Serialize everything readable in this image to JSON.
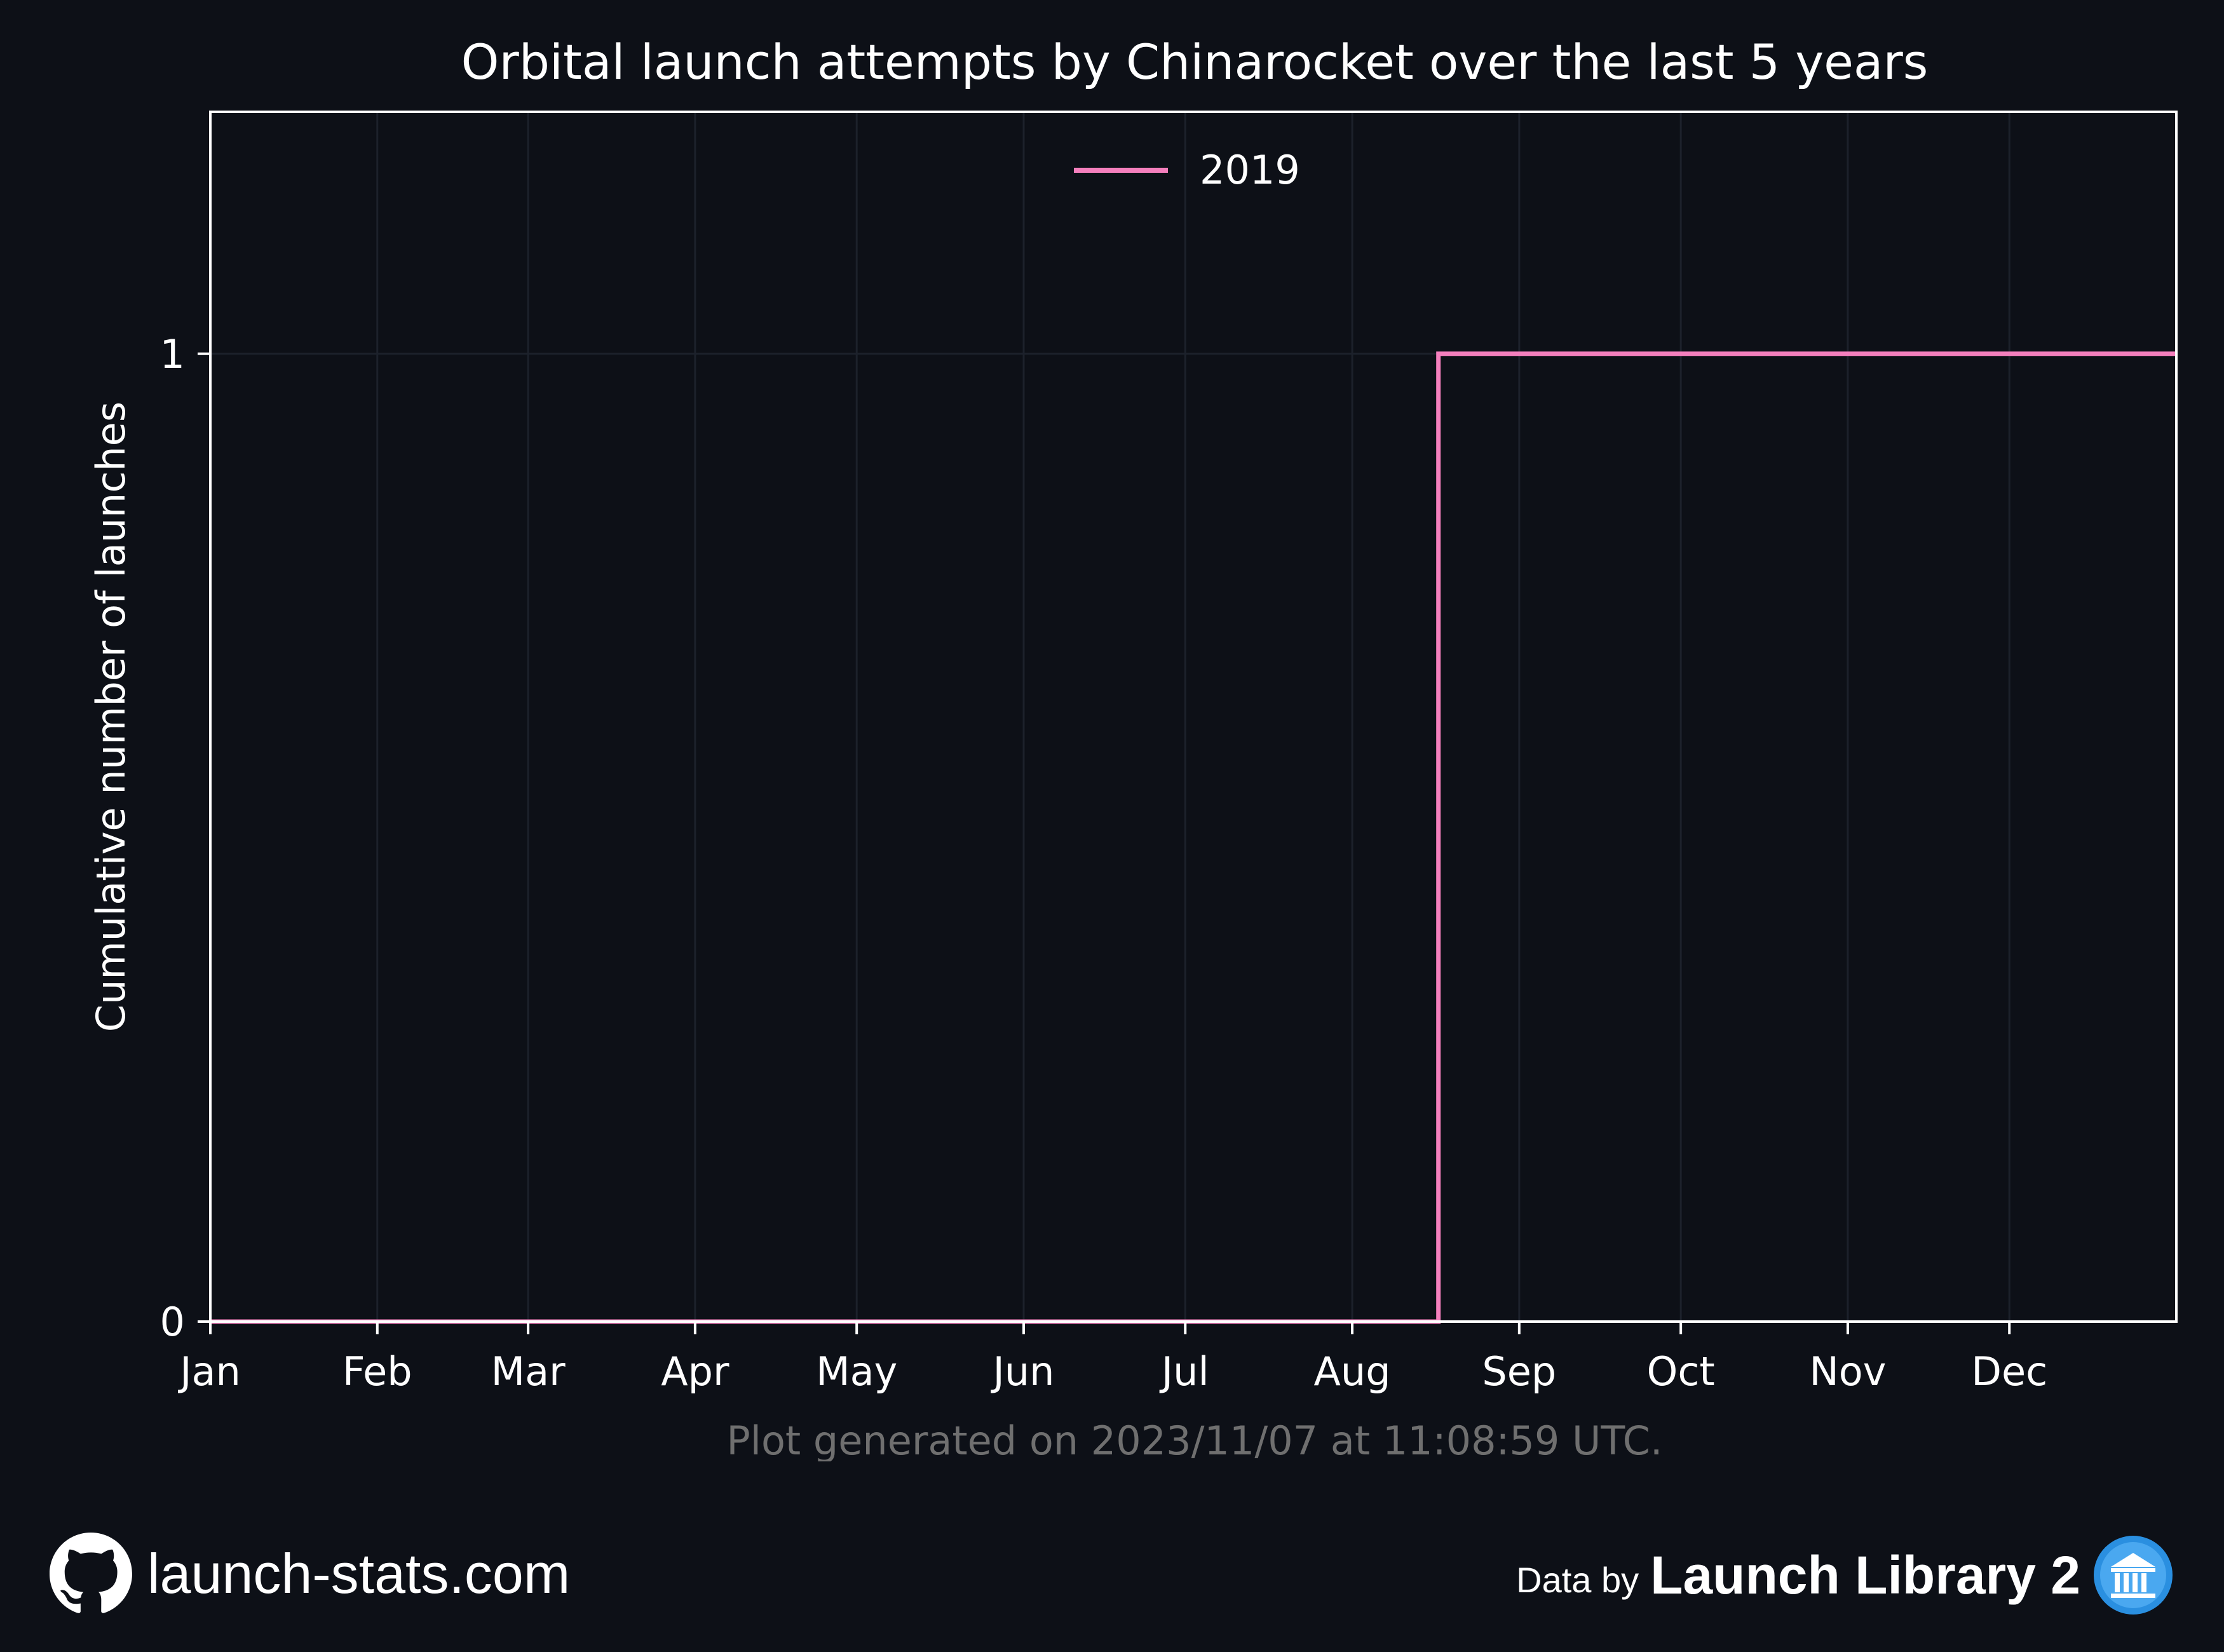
{
  "chart_data": {
    "type": "line",
    "step": true,
    "title": "Orbital launch attempts by Chinarocket over the last 5 years",
    "xlabel": "",
    "ylabel": "Cumulative number of launches",
    "x_ticks": [
      "Jan",
      "Feb",
      "Mar",
      "Apr",
      "May",
      "Jun",
      "Jul",
      "Aug",
      "Sep",
      "Oct",
      "Nov",
      "Dec"
    ],
    "x_tick_days": [
      0,
      31,
      59,
      90,
      120,
      151,
      181,
      212,
      243,
      273,
      304,
      334
    ],
    "xlim_days": [
      0,
      365
    ],
    "y_ticks": [
      0,
      1
    ],
    "ylim": [
      -0.0,
      1.25
    ],
    "grid": true,
    "legend_position": "top-center",
    "series": [
      {
        "name": "2019",
        "color": "#f47fbd",
        "points": [
          {
            "x": "Jan 1",
            "x_day": 0,
            "y": 0
          },
          {
            "x": "Aug 17",
            "x_day": 228,
            "y": 0
          },
          {
            "x": "Aug 17",
            "x_day": 228,
            "y": 1
          },
          {
            "x": "Dec 31",
            "x_day": 365,
            "y": 1
          }
        ]
      }
    ],
    "note": "Plot generated on 2023/11/07 at 11:08:59 UTC."
  },
  "footer": {
    "site": "launch-stats.com",
    "data_by": "Data by",
    "library": "Launch Library 2"
  },
  "icons": {
    "left": "github-icon",
    "right": "launch-library-icon"
  },
  "colors": {
    "background": "#0d1017",
    "axes": "#ffffff",
    "grid": "#1c212b",
    "note": "#6f6f6f",
    "series": "#f47fbd",
    "library_badge": "#2a8fe0"
  }
}
